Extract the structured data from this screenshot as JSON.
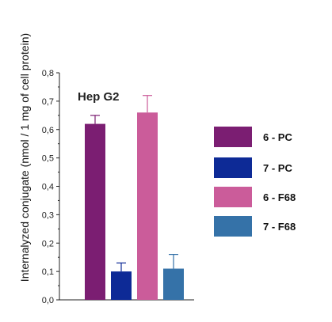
{
  "chart_data": {
    "type": "bar",
    "title": "Hep G2",
    "xlabel": "",
    "ylabel": "Internalyzed conjugate (nmol / 1 mg of cell protein)",
    "ylim": [
      0,
      0.8
    ],
    "yticks": [
      "0,0",
      "0,1",
      "0,2",
      "0,3",
      "0,4",
      "0,5",
      "0,6",
      "0,7",
      "0,8"
    ],
    "grid": false,
    "legend_position": "right",
    "series": [
      {
        "name": "6 - PC",
        "value": 0.62,
        "error": 0.03,
        "color": "#7b1e72"
      },
      {
        "name": "7 - PC",
        "value": 0.1,
        "error": 0.03,
        "color": "#0d2a96"
      },
      {
        "name": "6 - F68",
        "value": 0.66,
        "error": 0.06,
        "color": "#cb5c9a"
      },
      {
        "name": "7 - F68",
        "value": 0.11,
        "error": 0.05,
        "color": "#3572a8"
      }
    ]
  }
}
